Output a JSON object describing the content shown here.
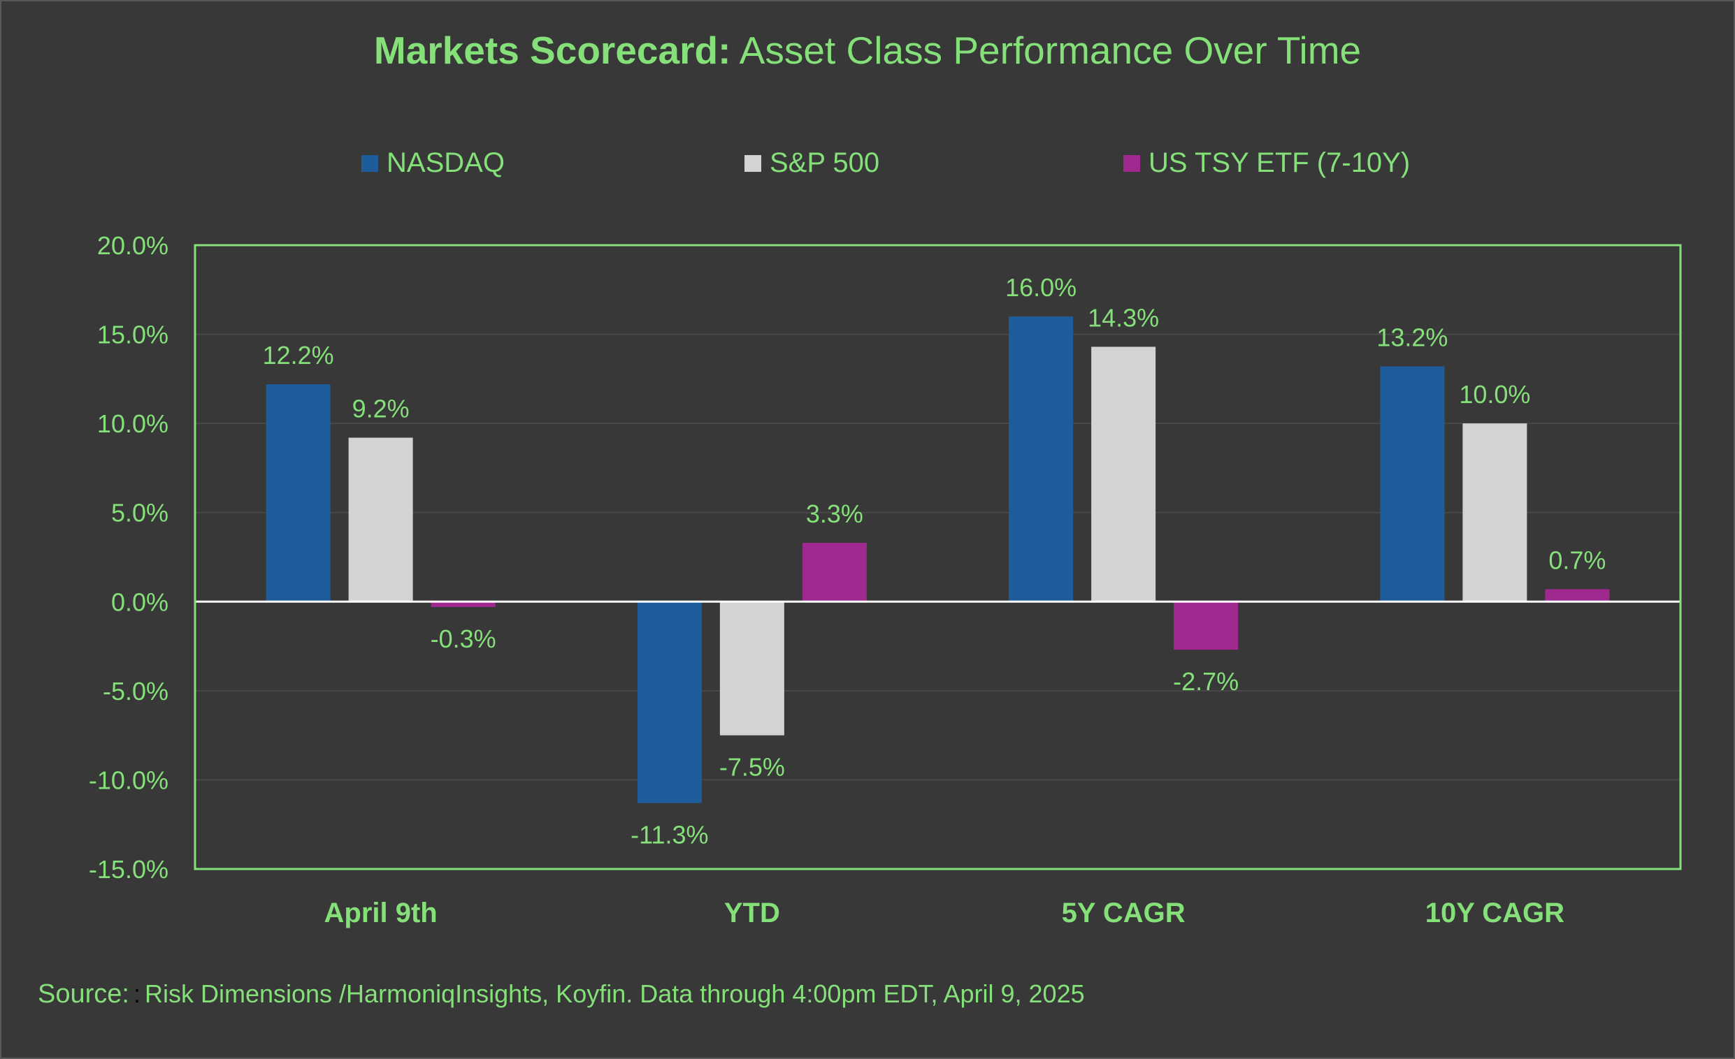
{
  "title_bold": "Markets Scorecard:",
  "title_rest": "Asset Class Performance Over Time",
  "source": {
    "label": "Source:",
    "separator": ":",
    "text": "Risk Dimensions /HarmoniqInsights, Koyfin. Data through 4:00pm EDT, April 9, 2025"
  },
  "colors": {
    "background": "#383838",
    "text": "#85e07a",
    "plot_border": "#85e07a",
    "grid": "#484848",
    "zero_line": "#ffffff"
  },
  "chart_data": {
    "type": "bar",
    "categories": [
      "April 9th",
      "YTD",
      "5Y CAGR",
      "10Y CAGR"
    ],
    "series": [
      {
        "name": "NASDAQ",
        "color": "#1f5c9c",
        "values": [
          12.2,
          -11.3,
          16.0,
          13.2
        ],
        "labels": [
          "12.2%",
          "-11.3%",
          "16.0%",
          "13.2%"
        ]
      },
      {
        "name": "S&P 500",
        "color": "#d3d3d3",
        "values": [
          9.2,
          -7.5,
          14.3,
          10.0
        ],
        "labels": [
          "9.2%",
          "-7.5%",
          "14.3%",
          "10.0%"
        ]
      },
      {
        "name": "US TSY ETF (7-10Y)",
        "color": "#a0298f",
        "values": [
          -0.3,
          3.3,
          -2.7,
          0.7
        ],
        "labels": [
          "-0.3%",
          "3.3%",
          "-2.7%",
          "0.7%"
        ]
      }
    ],
    "ylim": [
      -15,
      20
    ],
    "yticks": [
      20,
      15,
      10,
      5,
      0,
      -5,
      -10,
      -15
    ],
    "ytick_labels": [
      "20.0%",
      "15.0%",
      "10.0%",
      "5.0%",
      "0.0%",
      "-5.0%",
      "-10.0%",
      "-15.0%"
    ],
    "grid": true,
    "legend_position": "top"
  }
}
